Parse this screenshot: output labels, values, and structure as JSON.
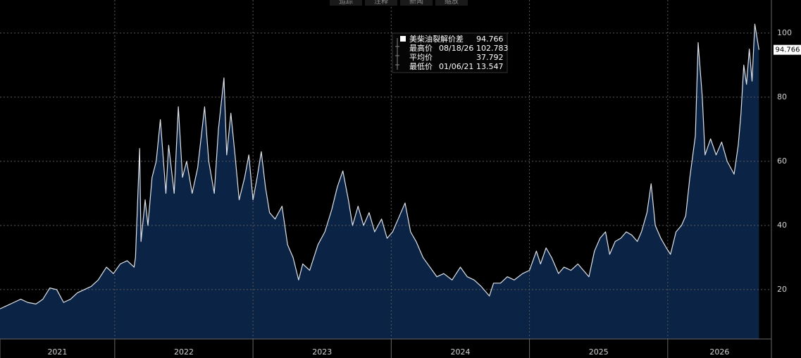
{
  "toolbar": [
    "追踪",
    "注释",
    "新闻",
    "缩放"
  ],
  "chart_data": {
    "type": "area",
    "series": [
      {
        "name": "美柴油裂解价差",
        "color": "#dfe3ea",
        "fill": "#0b2345",
        "values": [
          14,
          15,
          16,
          17,
          16,
          15.5,
          17,
          20.5,
          20,
          16,
          17,
          19,
          20,
          21,
          23,
          27,
          25,
          28,
          29,
          27,
          30,
          64,
          35,
          48,
          40,
          55,
          60,
          73,
          50,
          65,
          50,
          77,
          55,
          60,
          50,
          58,
          77,
          60,
          50,
          70,
          86,
          62,
          75,
          62,
          48,
          55,
          62,
          48,
          55,
          63,
          52,
          44,
          42,
          46,
          34,
          30,
          23,
          28,
          26,
          34,
          38,
          45,
          52,
          57,
          48,
          40,
          46,
          40,
          44,
          38,
          42,
          36,
          38,
          42,
          47,
          38,
          35,
          30,
          27,
          24,
          25,
          23,
          27,
          24,
          23,
          21,
          18,
          22,
          22,
          24,
          23,
          25,
          26,
          32,
          28,
          33,
          30,
          25,
          27,
          26,
          28,
          26,
          24,
          32,
          36,
          38,
          31,
          35,
          36,
          38,
          37,
          35,
          38,
          44,
          53,
          40,
          36,
          33,
          31,
          38,
          40,
          43,
          55,
          68,
          97,
          80,
          62,
          67,
          62,
          66,
          60,
          56,
          65,
          75,
          90,
          84,
          95,
          85,
          102.783,
          94.766
        ]
      }
    ],
    "x": [
      2021.17,
      2021.22,
      2021.27,
      2021.32,
      2021.37,
      2021.43,
      2021.48,
      2021.53,
      2021.58,
      2021.63,
      2021.68,
      2021.73,
      2021.78,
      2021.83,
      2021.88,
      2021.94,
      2021.99,
      2022.04,
      2022.09,
      2022.14,
      2022.15,
      2022.18,
      2022.19,
      2022.22,
      2022.24,
      2022.27,
      2022.3,
      2022.33,
      2022.37,
      2022.39,
      2022.43,
      2022.46,
      2022.49,
      2022.52,
      2022.56,
      2022.6,
      2022.65,
      2022.68,
      2022.72,
      2022.75,
      2022.79,
      2022.81,
      2022.84,
      2022.87,
      2022.9,
      2022.94,
      2022.97,
      2023.0,
      2023.03,
      2023.06,
      2023.09,
      2023.12,
      2023.16,
      2023.21,
      2023.25,
      2023.29,
      2023.33,
      2023.36,
      2023.41,
      2023.47,
      2023.52,
      2023.57,
      2023.61,
      2023.65,
      2023.69,
      2023.72,
      2023.76,
      2023.8,
      2023.84,
      2023.88,
      2023.93,
      2023.97,
      2024.01,
      2024.05,
      2024.1,
      2024.14,
      2024.18,
      2024.23,
      2024.28,
      2024.33,
      2024.38,
      2024.44,
      2024.5,
      2024.55,
      2024.6,
      2024.65,
      2024.71,
      2024.74,
      2024.79,
      2024.84,
      2024.89,
      2024.95,
      2025.0,
      2025.05,
      2025.08,
      2025.12,
      2025.16,
      2025.21,
      2025.25,
      2025.3,
      2025.35,
      2025.39,
      2025.43,
      2025.47,
      2025.51,
      2025.55,
      2025.58,
      2025.62,
      2025.66,
      2025.7,
      2025.74,
      2025.78,
      2025.81,
      2025.85,
      2025.88,
      2025.91,
      2025.95,
      2025.99,
      2026.02,
      2026.06,
      2026.1,
      2026.13,
      2026.16,
      2026.2,
      2026.22,
      2026.25,
      2026.27,
      2026.31,
      2026.35,
      2026.39,
      2026.43,
      2026.48,
      2026.51,
      2026.53,
      2026.55,
      2026.57,
      2026.59,
      2026.61,
      2026.63,
      2026.66
    ],
    "xlim": [
      2021.17,
      2026.75
    ],
    "xticks": [
      2021,
      2022,
      2023,
      2024,
      2025,
      2026
    ],
    "ylim": [
      4.6,
      110.3
    ],
    "yticks": [
      20,
      40,
      60,
      80,
      100
    ],
    "grid": true,
    "stats": [
      {
        "label": "最高价",
        "date": "08/18/26",
        "value": 102.783
      },
      {
        "label": "平均价",
        "value": 37.792
      },
      {
        "label": "最低价",
        "date": "01/06/21",
        "value": 13.547
      }
    ]
  }
}
